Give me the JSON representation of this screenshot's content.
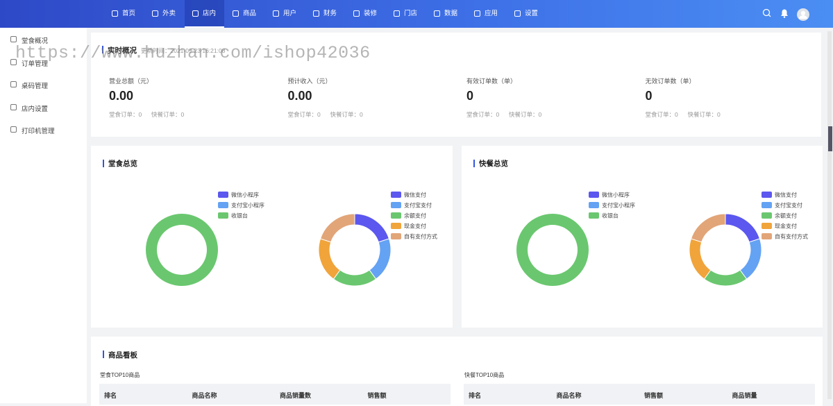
{
  "nav": {
    "items": [
      "首页",
      "外卖",
      "店内",
      "商品",
      "用户",
      "财务",
      "装修",
      "门店",
      "数据",
      "应用",
      "设置"
    ],
    "active": 2
  },
  "sidebar": {
    "items": [
      "堂食概况",
      "订单管理",
      "桌码管理",
      "店内设置",
      "打印机管理"
    ]
  },
  "watermark": "https://www.huzhan.com/ishop42036",
  "overview": {
    "title": "实时概况",
    "update_time": "更新时间：2021-09-23 16:21:08",
    "stats": [
      {
        "label": "营业总额（元）",
        "value": "0.00",
        "sub": [
          "堂食订单：0",
          "快餐订单：0"
        ]
      },
      {
        "label": "预计收入（元）",
        "value": "0.00",
        "sub": [
          "堂食订单：0",
          "快餐订单：0"
        ]
      },
      {
        "label": "有效订单数（单）",
        "value": "0",
        "sub": [
          "堂食订单：0",
          "快餐订单：0"
        ]
      },
      {
        "label": "无效订单数（单）",
        "value": "0",
        "sub": [
          "堂食订单：0",
          "快餐订单：0"
        ]
      }
    ]
  },
  "panels": [
    {
      "title": "堂食总览",
      "charts": [
        {
          "type": "pie",
          "categories": [
            "微信小程序",
            "支付宝小程序",
            "收银台"
          ],
          "values": [
            0,
            0,
            100
          ],
          "colors": [
            "#5b57ef",
            "#64a2f3",
            "#6ac76f"
          ]
        },
        {
          "type": "pie",
          "categories": [
            "微信支付",
            "支付宝支付",
            "余额支付",
            "现金支付",
            "自有支付方式"
          ],
          "values": [
            20,
            20,
            20,
            20,
            20
          ],
          "colors": [
            "#5b57ef",
            "#64a2f3",
            "#6ac76f",
            "#f0a43a",
            "#e2a578"
          ]
        }
      ]
    },
    {
      "title": "快餐总览",
      "charts": [
        {
          "type": "pie",
          "categories": [
            "微信小程序",
            "支付宝小程序",
            "收银台"
          ],
          "values": [
            0,
            0,
            100
          ],
          "colors": [
            "#5b57ef",
            "#64a2f3",
            "#6ac76f"
          ]
        },
        {
          "type": "pie",
          "categories": [
            "微信支付",
            "支付宝支付",
            "余额支付",
            "现金支付",
            "自有支付方式"
          ],
          "values": [
            20,
            20,
            20,
            20,
            20
          ],
          "colors": [
            "#5b57ef",
            "#64a2f3",
            "#6ac76f",
            "#f0a43a",
            "#e2a578"
          ]
        }
      ]
    }
  ],
  "goods": {
    "title": "商品看板",
    "tables": [
      {
        "title": "堂食TOP10商品",
        "columns": [
          "排名",
          "商品名称",
          "商品销量数",
          "销售额"
        ]
      },
      {
        "title": "快餐TOP10商品",
        "columns": [
          "排名",
          "商品名称",
          "销售额",
          "商品销量"
        ]
      }
    ]
  }
}
